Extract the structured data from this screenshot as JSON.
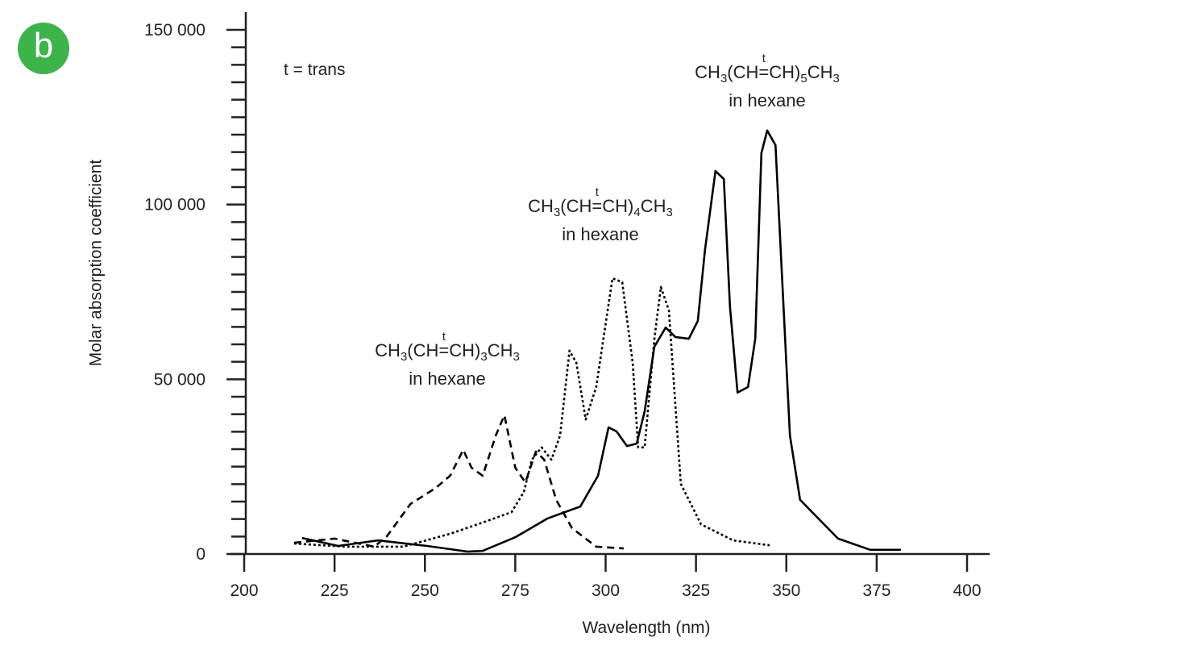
{
  "panel_label": "b",
  "chart_data": {
    "type": "line",
    "note": "t = trans",
    "xlabel": "Wavelength (nm)",
    "ylabel": "Molar absorption coefficient",
    "xlim": [
      200,
      400
    ],
    "xticks": [
      200,
      225,
      250,
      275,
      300,
      325,
      350,
      375,
      400
    ],
    "ylim": [
      0,
      150000
    ],
    "yticks": [
      {
        "value": 0,
        "label": "0"
      },
      {
        "value": 50000,
        "label": "50 000"
      },
      {
        "value": 100000,
        "label": "100 000"
      },
      {
        "value": 150000,
        "label": "150 000"
      }
    ],
    "yminorticks": [
      5000,
      10000,
      15000,
      20000,
      25000,
      30000,
      35000,
      40000,
      45000,
      55000,
      60000,
      65000,
      70000,
      75000,
      80000,
      85000,
      90000,
      95000,
      105000,
      110000,
      115000,
      120000,
      125000,
      130000,
      135000,
      140000,
      145000
    ],
    "series": [
      {
        "color": "#000000",
        "dash": "9 6",
        "formula": [
          {
            "text": "CH"
          },
          {
            "text": "3",
            "pos": "sub"
          },
          {
            "text": "(CH"
          },
          {
            "text": "=",
            "mark": "t"
          },
          {
            "text": "CH)"
          },
          {
            "text": "3",
            "pos": "sub"
          },
          {
            "text": "CH"
          },
          {
            "text": "3",
            "pos": "sub"
          }
        ],
        "medium": "in hexane",
        "x": [
          213.8,
          225,
          236,
          239.5,
          246,
          253,
          257,
          260.6,
          262.9,
          266,
          269.6,
          272,
          275,
          277.8,
          280.7,
          283,
          286.3,
          290.7,
          297.4,
          305
        ],
        "values": [
          3200,
          4400,
          2100,
          5100,
          14300,
          18900,
          22400,
          29800,
          24700,
          22400,
          33900,
          39700,
          24700,
          20500,
          29300,
          27000,
          15500,
          7400,
          2100,
          1600
        ]
      },
      {
        "color": "#000000",
        "dash": "3 3",
        "formula": [
          {
            "text": "CH"
          },
          {
            "text": "3",
            "pos": "sub"
          },
          {
            "text": "(CH"
          },
          {
            "text": "=",
            "mark": "t"
          },
          {
            "text": "CH)"
          },
          {
            "text": "4",
            "pos": "sub"
          },
          {
            "text": "CH"
          },
          {
            "text": "3",
            "pos": "sub"
          }
        ],
        "medium": "in hexane",
        "x": [
          213.8,
          228,
          244,
          257,
          266,
          274,
          277.4,
          279.6,
          282.3,
          285,
          287.4,
          290,
          291.9,
          294.5,
          297.4,
          301.9,
          304.6,
          307.5,
          309,
          310.8,
          313.5,
          315.3,
          317.5,
          320.8,
          326.4,
          335.3,
          345.4
        ],
        "values": [
          3000,
          2100,
          2100,
          5800,
          9000,
          12000,
          17800,
          27000,
          30500,
          27000,
          33900,
          58200,
          54700,
          38500,
          47800,
          78900,
          77800,
          54700,
          30500,
          30500,
          61600,
          76400,
          69700,
          20100,
          8500,
          3900,
          2500
        ]
      },
      {
        "color": "#000000",
        "dash": "none",
        "formula": [
          {
            "text": "CH"
          },
          {
            "text": "3",
            "pos": "sub"
          },
          {
            "text": "(CH"
          },
          {
            "text": "=",
            "mark": "t"
          },
          {
            "text": "CH)"
          },
          {
            "text": "5",
            "pos": "sub"
          },
          {
            "text": "CH"
          },
          {
            "text": "3",
            "pos": "sub"
          }
        ],
        "medium": "in hexane",
        "x": [
          216,
          226,
          237,
          250.6,
          261.8,
          266,
          275,
          284,
          293,
          297.9,
          300.8,
          303,
          305.9,
          308.6,
          310.8,
          313.5,
          316.6,
          319.3,
          323,
          325.5,
          327.5,
          330.4,
          332.7,
          334.4,
          336.5,
          339.4,
          341.4,
          343.1,
          344.7,
          347,
          351,
          353.8,
          364.3,
          373.2,
          381.7
        ],
        "values": [
          4600,
          2300,
          3900,
          2300,
          700,
          900,
          4800,
          10200,
          13600,
          22400,
          36200,
          35100,
          30900,
          31600,
          40800,
          59300,
          64800,
          62100,
          61600,
          66700,
          87000,
          109600,
          107300,
          70800,
          46200,
          47800,
          61600,
          114700,
          121200,
          117000,
          33900,
          15500,
          4400,
          1200,
          1200
        ]
      }
    ]
  }
}
